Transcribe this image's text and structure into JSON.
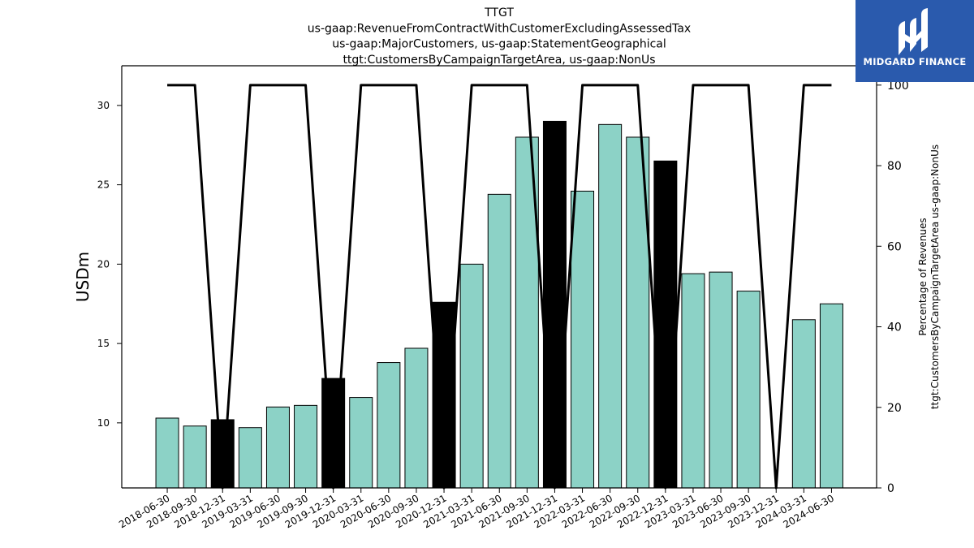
{
  "chart_data": {
    "type": "bar",
    "title_lines": [
      "TTGT",
      "us-gaap:RevenueFromContractWithCustomerExcludingAssessedTax",
      "us-gaap:MajorCustomers, us-gaap:StatementGeographical",
      "ttgt:CustomersByCampaignTargetArea, us-gaap:NonUs"
    ],
    "ylabel": "USDm",
    "ylabel_right_lines": [
      "Percentage of Revenues",
      "ttgt:CustomersByCampaignTargetArea us-gaap:NonUs"
    ],
    "categories": [
      "2018-06-30",
      "2018-09-30",
      "2018-12-31",
      "2019-03-31",
      "2019-06-30",
      "2019-09-30",
      "2019-12-31",
      "2020-03-31",
      "2020-06-30",
      "2020-09-30",
      "2020-12-31",
      "2021-03-31",
      "2021-06-30",
      "2021-09-30",
      "2021-12-31",
      "2022-03-31",
      "2022-06-30",
      "2022-09-30",
      "2022-12-31",
      "2023-03-31",
      "2023-06-30",
      "2023-09-30",
      "2023-12-31",
      "2024-03-31",
      "2024-06-30"
    ],
    "series": [
      {
        "axis": "left",
        "values": [
          10.3,
          9.8,
          10.2,
          9.7,
          11.0,
          11.1,
          12.8,
          11.6,
          13.8,
          14.7,
          17.6,
          20.0,
          24.4,
          28.0,
          29.0,
          24.6,
          28.8,
          28.0,
          26.5,
          19.4,
          19.5,
          18.3,
          null,
          16.5,
          17.5
        ],
        "highlight": [
          false,
          false,
          true,
          false,
          false,
          false,
          true,
          false,
          false,
          false,
          true,
          false,
          false,
          false,
          true,
          false,
          false,
          false,
          true,
          false,
          false,
          false,
          false,
          false,
          false
        ]
      },
      {
        "axis": "right",
        "type": "line",
        "values": [
          100,
          100,
          0,
          100,
          100,
          100,
          0,
          100,
          100,
          100,
          0,
          100,
          100,
          100,
          0,
          100,
          100,
          100,
          0,
          100,
          100,
          100,
          0,
          100,
          100
        ]
      }
    ],
    "ylim": [
      5.9,
      32.5
    ],
    "yticks": [
      10,
      15,
      20,
      25,
      30
    ],
    "ylim_right": [
      0,
      104.8
    ],
    "yticks_right": [
      0,
      20,
      40,
      60,
      80,
      100
    ],
    "colors": {
      "bar": "#8cd2c6",
      "bar_highlight": "#000000",
      "line": "#000000",
      "logo_bg": "#2a5aad"
    }
  },
  "logo": {
    "text": "MIDGARD FINANCE"
  }
}
